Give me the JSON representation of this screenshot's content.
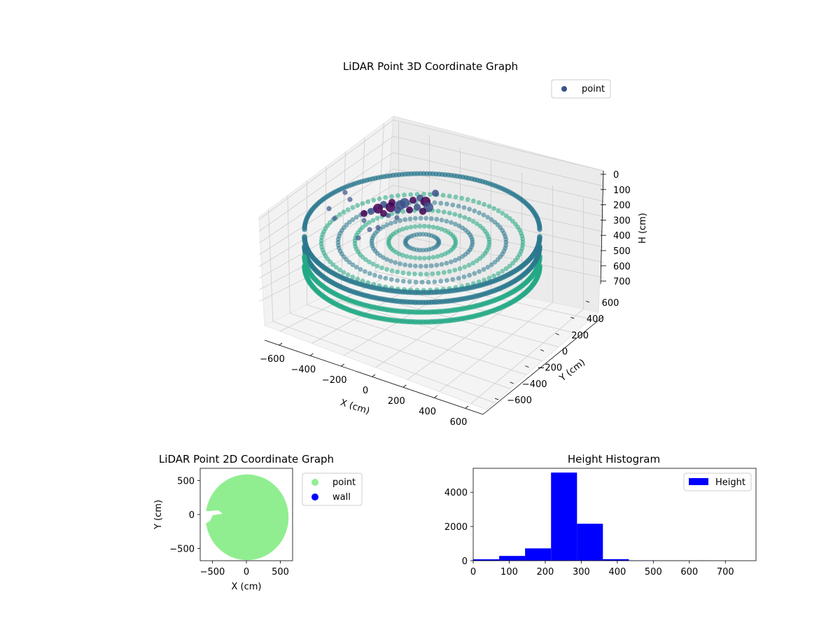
{
  "colors": {
    "point3d_dark": "#440154",
    "point3d_mid": "#3b528b",
    "point3d_main": "#2a788e",
    "point3d_light": "#22a884",
    "legend_marker_3d": "#3b528b",
    "point2d": "#90ee90",
    "wall": "#0000ff",
    "hist_bar": "#0000ff",
    "pane": "#f2f2f2",
    "grid": "#cccccc"
  },
  "chart_data": [
    {
      "type": "scatter",
      "projection": "3d",
      "title": "LiDAR Point 3D Coordinate Graph",
      "xlabel": "X (cm)",
      "ylabel": "Y (cm)",
      "zlabel": "H (cm)",
      "x_ticks": [
        "−600",
        "−400",
        "−200",
        "0",
        "200",
        "400",
        "600"
      ],
      "y_ticks": [
        "−600",
        "−400",
        "−200",
        "0",
        "200",
        "400",
        "600"
      ],
      "z_ticks": [
        "0",
        "100",
        "200",
        "300",
        "400",
        "500",
        "600",
        "700"
      ],
      "xlim": [
        -600,
        600
      ],
      "ylim": [
        -600,
        600
      ],
      "zlim": [
        0,
        750
      ],
      "z_inverted": true,
      "colormap": "viridis",
      "legend": {
        "entries": [
          "point"
        ],
        "placement": "upper-right"
      },
      "series": [
        {
          "name": "point",
          "shape": "circular room point cloud, radius ≈ 600 cm, wall at H ≈ 250–300 cm, denser low points near center-top"
        }
      ]
    },
    {
      "type": "scatter",
      "title": "LiDAR Point 2D Coordinate Graph",
      "xlabel": "X (cm)",
      "ylabel": "Y (cm)",
      "x_ticks": [
        "−500",
        "0",
        "500"
      ],
      "y_ticks": [
        "−500",
        "0",
        "500"
      ],
      "xlim": [
        -680,
        680
      ],
      "ylim": [
        -680,
        680
      ],
      "legend": {
        "entries": [
          "point",
          "wall"
        ],
        "placement": "outside-right"
      },
      "series": [
        {
          "name": "point",
          "shape": "filled disc centered near (0, 0), radius ≈ 600 cm, small gap at left around y = 0"
        },
        {
          "name": "wall"
        }
      ]
    },
    {
      "type": "bar",
      "subtype": "histogram",
      "title": "Height Histogram",
      "x_ticks": [
        "0",
        "100",
        "200",
        "300",
        "400",
        "500",
        "600",
        "700"
      ],
      "y_ticks": [
        "0",
        "2000",
        "4000"
      ],
      "xlim": [
        0,
        785
      ],
      "ylim": [
        0,
        5400
      ],
      "bin_edges": [
        0,
        72,
        144,
        216,
        288,
        360,
        432,
        504,
        576,
        648,
        720
      ],
      "values": [
        80,
        280,
        720,
        5150,
        2160,
        90,
        15,
        10,
        8,
        5
      ],
      "legend": {
        "entries": [
          "Height"
        ],
        "placement": "upper-right"
      },
      "series": [
        {
          "name": "Height"
        }
      ]
    }
  ]
}
